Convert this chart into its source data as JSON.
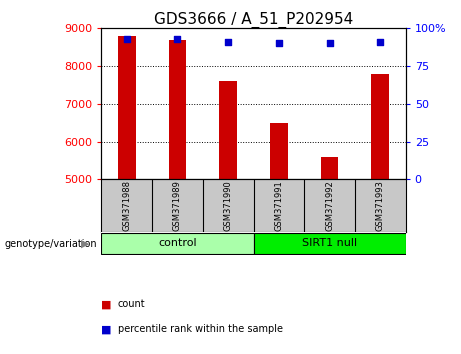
{
  "title": "GDS3666 / A_51_P202954",
  "samples": [
    "GSM371988",
    "GSM371989",
    "GSM371990",
    "GSM371991",
    "GSM371992",
    "GSM371993"
  ],
  "counts": [
    8800,
    8700,
    7600,
    6500,
    5600,
    7800
  ],
  "percentiles": [
    93,
    93,
    91,
    90,
    90,
    91
  ],
  "ylim_left": [
    5000,
    9000
  ],
  "ylim_right": [
    0,
    100
  ],
  "yticks_left": [
    5000,
    6000,
    7000,
    8000,
    9000
  ],
  "yticks_right": [
    0,
    25,
    50,
    75,
    100
  ],
  "bar_color": "#cc0000",
  "dot_color": "#0000cc",
  "bar_width": 0.35,
  "groups": [
    {
      "label": "control",
      "indices": [
        0,
        1,
        2
      ],
      "color": "#aaffaa"
    },
    {
      "label": "SIRT1 null",
      "indices": [
        3,
        4,
        5
      ],
      "color": "#00ee00"
    }
  ],
  "genotype_label": "genotype/variation",
  "legend_count": "count",
  "legend_percentile": "percentile rank within the sample",
  "title_fontsize": 11,
  "tick_fontsize": 8,
  "label_bg": "#c8c8c8",
  "plot_bg": "#ffffff"
}
